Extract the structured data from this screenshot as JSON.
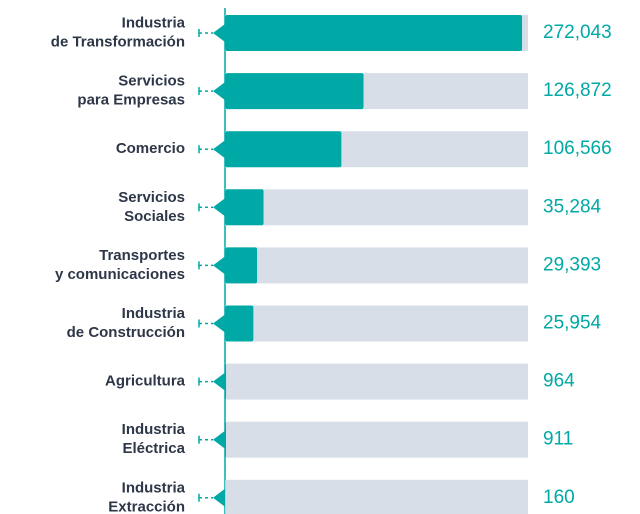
{
  "chart_data": {
    "type": "bar",
    "orientation": "horizontal",
    "categories": [
      [
        "Industria",
        "de Transformación"
      ],
      [
        "Servicios",
        "para Empresas"
      ],
      [
        "Comercio"
      ],
      [
        "Servicios",
        "Sociales"
      ],
      [
        "Transportes",
        "y comunicaciones"
      ],
      [
        "Industria",
        "de Construcción"
      ],
      [
        "Agricultura"
      ],
      [
        "Industria",
        "Eléctrica"
      ],
      [
        "Industria",
        "Extracción"
      ]
    ],
    "values": [
      272043,
      126872,
      106566,
      35284,
      29393,
      25954,
      964,
      911,
      160
    ],
    "value_labels": [
      "272,043",
      "126,872",
      "106,566",
      "35,284",
      "29,393",
      "25,954",
      "964",
      "911",
      "160"
    ],
    "color": "#00a9a5",
    "track_color": "#d8dee8",
    "xlim": [
      0,
      277500
    ]
  }
}
